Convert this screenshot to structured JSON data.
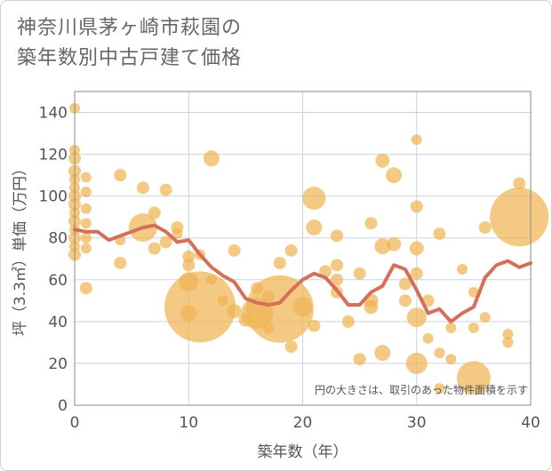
{
  "title_line1": "神奈川県茅ヶ崎市萩園の",
  "title_line2": "築年数別中古戸建て価格",
  "colors": {
    "bubble": "#f0b455",
    "line": "#d4705a",
    "grid": "#c9d3e0",
    "plot_border": "#8a8a8a"
  },
  "chart_data": {
    "type": "scatter",
    "title": "神奈川県茅ヶ崎市萩園の築年数別中古戸建て価格",
    "xlabel": "築年数（年）",
    "ylabel": "坪（3.3㎡）単価（万円）",
    "xlim": [
      0,
      40
    ],
    "ylim": [
      0,
      150
    ],
    "xticks": [
      0,
      10,
      20,
      30,
      40
    ],
    "yticks": [
      0,
      20,
      40,
      60,
      80,
      100,
      120,
      140
    ],
    "grid": true,
    "annotation": "円の大きさは、取引のあった物件面積を示す",
    "bubbles": [
      {
        "x": 0,
        "y": 142,
        "r": 6
      },
      {
        "x": 0,
        "y": 122,
        "r": 6
      },
      {
        "x": 0,
        "y": 118,
        "r": 7
      },
      {
        "x": 0,
        "y": 112,
        "r": 7
      },
      {
        "x": 0,
        "y": 108,
        "r": 6
      },
      {
        "x": 0,
        "y": 104,
        "r": 6
      },
      {
        "x": 0,
        "y": 100,
        "r": 7
      },
      {
        "x": 0,
        "y": 96,
        "r": 7
      },
      {
        "x": 0,
        "y": 92,
        "r": 6
      },
      {
        "x": 0,
        "y": 88,
        "r": 7
      },
      {
        "x": 0,
        "y": 84,
        "r": 6
      },
      {
        "x": 0,
        "y": 80,
        "r": 7
      },
      {
        "x": 0,
        "y": 76,
        "r": 6
      },
      {
        "x": 0,
        "y": 72,
        "r": 7
      },
      {
        "x": 1,
        "y": 109,
        "r": 6
      },
      {
        "x": 1,
        "y": 102,
        "r": 6
      },
      {
        "x": 1,
        "y": 94,
        "r": 6
      },
      {
        "x": 1,
        "y": 87,
        "r": 6
      },
      {
        "x": 1,
        "y": 80,
        "r": 6
      },
      {
        "x": 1,
        "y": 75,
        "r": 6
      },
      {
        "x": 1,
        "y": 56,
        "r": 7
      },
      {
        "x": 4,
        "y": 110,
        "r": 7
      },
      {
        "x": 4,
        "y": 79,
        "r": 6
      },
      {
        "x": 4,
        "y": 68,
        "r": 7
      },
      {
        "x": 6,
        "y": 104,
        "r": 7
      },
      {
        "x": 6,
        "y": 85,
        "r": 16
      },
      {
        "x": 7,
        "y": 92,
        "r": 7
      },
      {
        "x": 7,
        "y": 75,
        "r": 7
      },
      {
        "x": 8,
        "y": 103,
        "r": 7
      },
      {
        "x": 8,
        "y": 78,
        "r": 7
      },
      {
        "x": 9,
        "y": 85,
        "r": 7
      },
      {
        "x": 9,
        "y": 82,
        "r": 6
      },
      {
        "x": 10,
        "y": 71,
        "r": 7
      },
      {
        "x": 10,
        "y": 67,
        "r": 7
      },
      {
        "x": 10,
        "y": 59,
        "r": 11
      },
      {
        "x": 10,
        "y": 44,
        "r": 9
      },
      {
        "x": 11,
        "y": 47,
        "r": 40
      },
      {
        "x": 11,
        "y": 72,
        "r": 6
      },
      {
        "x": 12,
        "y": 118,
        "r": 9
      },
      {
        "x": 12,
        "y": 60,
        "r": 6
      },
      {
        "x": 13,
        "y": 50,
        "r": 6
      },
      {
        "x": 14,
        "y": 74,
        "r": 7
      },
      {
        "x": 14,
        "y": 45,
        "r": 8
      },
      {
        "x": 15,
        "y": 41,
        "r": 8
      },
      {
        "x": 16,
        "y": 56,
        "r": 7
      },
      {
        "x": 16,
        "y": 44,
        "r": 18
      },
      {
        "x": 17,
        "y": 52,
        "r": 7
      },
      {
        "x": 17,
        "y": 37,
        "r": 6
      },
      {
        "x": 18,
        "y": 46,
        "r": 38
      },
      {
        "x": 18,
        "y": 68,
        "r": 7
      },
      {
        "x": 19,
        "y": 74,
        "r": 7
      },
      {
        "x": 19,
        "y": 28,
        "r": 7
      },
      {
        "x": 20,
        "y": 47,
        "r": 11
      },
      {
        "x": 21,
        "y": 99,
        "r": 13
      },
      {
        "x": 21,
        "y": 85,
        "r": 9
      },
      {
        "x": 21,
        "y": 38,
        "r": 7
      },
      {
        "x": 22,
        "y": 64,
        "r": 7
      },
      {
        "x": 23,
        "y": 81,
        "r": 7
      },
      {
        "x": 23,
        "y": 67,
        "r": 7
      },
      {
        "x": 23,
        "y": 60,
        "r": 7
      },
      {
        "x": 23,
        "y": 54,
        "r": 7
      },
      {
        "x": 24,
        "y": 40,
        "r": 7
      },
      {
        "x": 25,
        "y": 63,
        "r": 7
      },
      {
        "x": 25,
        "y": 22,
        "r": 7
      },
      {
        "x": 26,
        "y": 87,
        "r": 7
      },
      {
        "x": 26,
        "y": 50,
        "r": 8
      },
      {
        "x": 26,
        "y": 47,
        "r": 8
      },
      {
        "x": 27,
        "y": 117,
        "r": 8
      },
      {
        "x": 27,
        "y": 76,
        "r": 9
      },
      {
        "x": 27,
        "y": 25,
        "r": 9
      },
      {
        "x": 28,
        "y": 110,
        "r": 9
      },
      {
        "x": 28,
        "y": 77,
        "r": 8
      },
      {
        "x": 29,
        "y": 58,
        "r": 7
      },
      {
        "x": 29,
        "y": 50,
        "r": 7
      },
      {
        "x": 30,
        "y": 127,
        "r": 6
      },
      {
        "x": 30,
        "y": 95,
        "r": 7
      },
      {
        "x": 30,
        "y": 75,
        "r": 8
      },
      {
        "x": 30,
        "y": 63,
        "r": 7
      },
      {
        "x": 30,
        "y": 42,
        "r": 11
      },
      {
        "x": 30,
        "y": 20,
        "r": 12
      },
      {
        "x": 31,
        "y": 50,
        "r": 7
      },
      {
        "x": 31,
        "y": 32,
        "r": 6
      },
      {
        "x": 32,
        "y": 82,
        "r": 7
      },
      {
        "x": 32,
        "y": 25,
        "r": 6
      },
      {
        "x": 32,
        "y": 8,
        "r": 6
      },
      {
        "x": 33,
        "y": 37,
        "r": 6
      },
      {
        "x": 33,
        "y": 22,
        "r": 6
      },
      {
        "x": 34,
        "y": 65,
        "r": 6
      },
      {
        "x": 35,
        "y": 54,
        "r": 6
      },
      {
        "x": 35,
        "y": 13,
        "r": 19
      },
      {
        "x": 35,
        "y": 37,
        "r": 6
      },
      {
        "x": 36,
        "y": 85,
        "r": 7
      },
      {
        "x": 36,
        "y": 42,
        "r": 6
      },
      {
        "x": 38,
        "y": 34,
        "r": 6
      },
      {
        "x": 38,
        "y": 30,
        "r": 6
      },
      {
        "x": 39,
        "y": 106,
        "r": 7
      },
      {
        "x": 39,
        "y": 90,
        "r": 33
      }
    ],
    "series": [
      {
        "x": [
          0,
          1,
          2,
          3,
          4,
          5,
          6,
          7,
          8,
          9,
          10,
          11,
          12,
          13,
          14,
          15,
          16,
          17,
          18,
          19,
          20,
          21,
          22,
          23,
          24,
          25,
          26,
          27,
          28,
          29,
          30,
          31,
          32,
          33,
          34,
          35,
          36,
          37,
          38,
          39,
          40
        ],
        "y": [
          84,
          83,
          83,
          79,
          81,
          83,
          85,
          86,
          83,
          78,
          79,
          72,
          66,
          62,
          59,
          51,
          49,
          48,
          49,
          55,
          60,
          63,
          61,
          55,
          48,
          48,
          54,
          57,
          67,
          65,
          55,
          44,
          46,
          40,
          44,
          47,
          61,
          67,
          69,
          66,
          68
        ]
      }
    ]
  }
}
